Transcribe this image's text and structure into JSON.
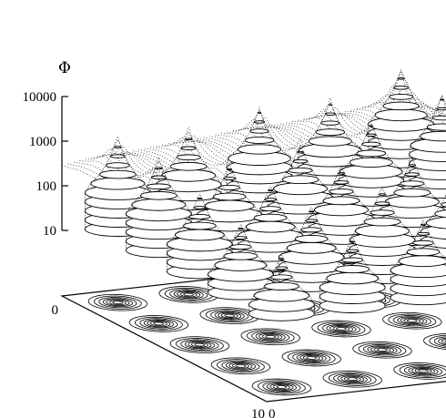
{
  "chart_data": {
    "type": "surface",
    "zlabel": "Φ",
    "z_scale": "log",
    "z_ticks": [
      "10",
      "100",
      "1000",
      "10000"
    ],
    "z_tick_values": [
      10,
      100,
      1000,
      10000
    ],
    "x_tick_labels": [
      "0",
      "10"
    ],
    "y_tick_labels": [
      "0",
      "10"
    ],
    "x_range": [
      0,
      10
    ],
    "y_range": [
      0,
      10
    ],
    "grid": false,
    "legend": "none",
    "peaks": [
      {
        "x": 1,
        "y": 1,
        "z": 1500
      },
      {
        "x": 1,
        "y": 3,
        "z": 1500
      },
      {
        "x": 1,
        "y": 5,
        "z": 3000
      },
      {
        "x": 1,
        "y": 7,
        "z": 3000
      },
      {
        "x": 1,
        "y": 9,
        "z": 10000
      },
      {
        "x": 3,
        "y": 1,
        "z": 1500
      },
      {
        "x": 3,
        "y": 3,
        "z": 800
      },
      {
        "x": 3,
        "y": 5,
        "z": 1500
      },
      {
        "x": 3,
        "y": 7,
        "z": 3000
      },
      {
        "x": 3,
        "y": 9,
        "z": 8000
      },
      {
        "x": 5,
        "y": 1,
        "z": 800
      },
      {
        "x": 5,
        "y": 3,
        "z": 800
      },
      {
        "x": 5,
        "y": 5,
        "z": 1500
      },
      {
        "x": 5,
        "y": 7,
        "z": 1500
      },
      {
        "x": 5,
        "y": 9,
        "z": 8000
      },
      {
        "x": 7,
        "y": 1,
        "z": 500
      },
      {
        "x": 7,
        "y": 3,
        "z": 800
      },
      {
        "x": 7,
        "y": 5,
        "z": 1500
      },
      {
        "x": 7,
        "y": 7,
        "z": 1500
      },
      {
        "x": 7,
        "y": 9,
        "z": 3000
      },
      {
        "x": 9,
        "y": 1,
        "z": 300
      },
      {
        "x": 9,
        "y": 3,
        "z": 500
      },
      {
        "x": 9,
        "y": 5,
        "z": 800
      },
      {
        "x": 9,
        "y": 7,
        "z": 1500
      },
      {
        "x": 9,
        "y": 9,
        "z": 1500
      }
    ],
    "contour_projection": true
  }
}
